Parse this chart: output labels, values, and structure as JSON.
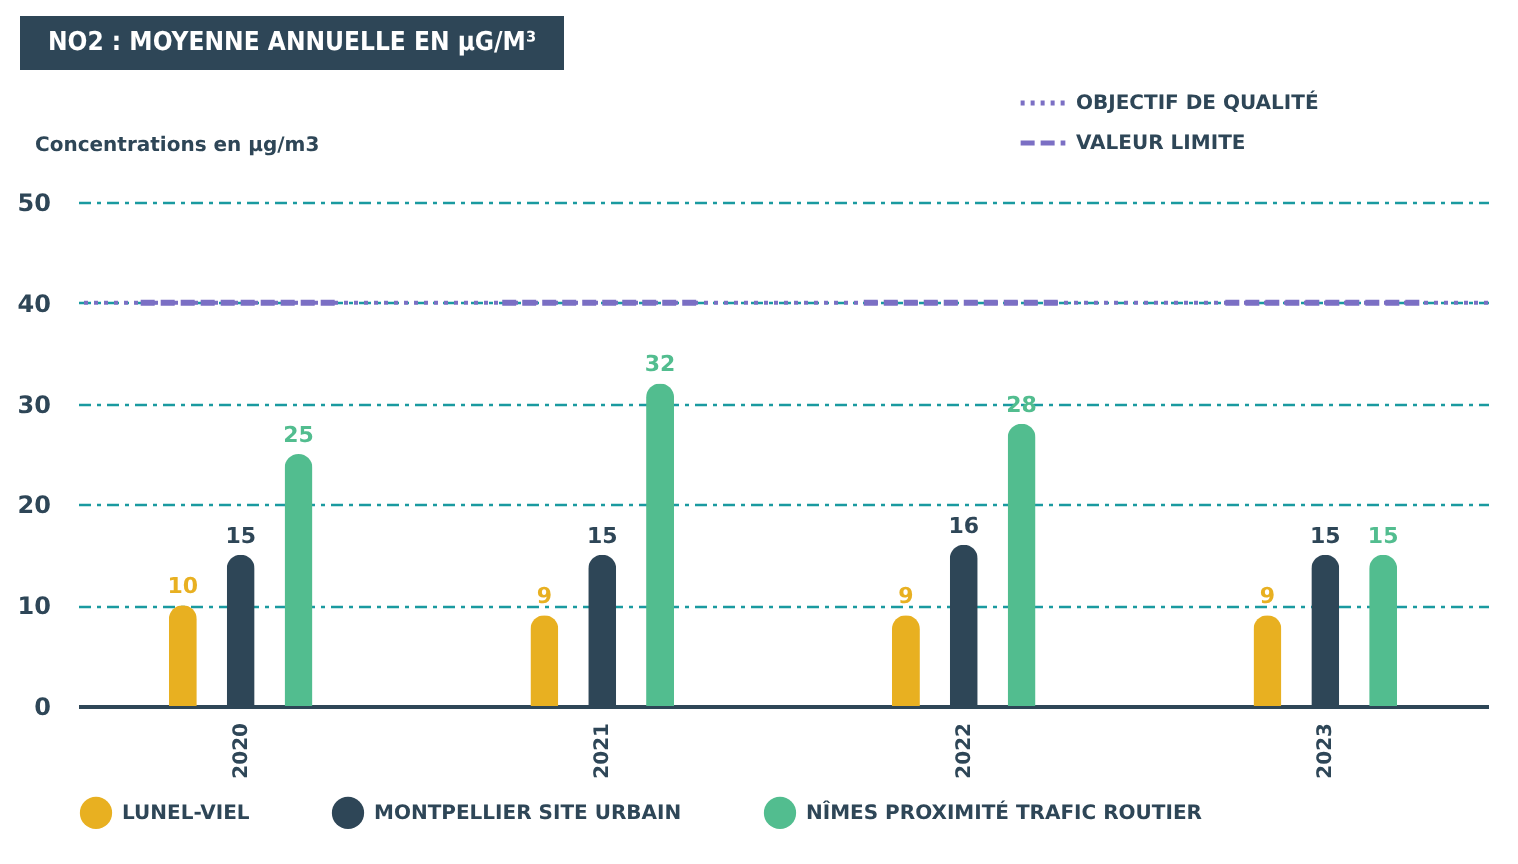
{
  "chart_data": {
    "type": "bar",
    "title": "NO2 : MOYENNE ANNUELLE EN µG/M³",
    "ylabel": "Concentrations en µg/m3",
    "categories": [
      "2020",
      "2021",
      "2022",
      "2023"
    ],
    "series": [
      {
        "name": "LUNEL-VIEL",
        "color": "#e8b021",
        "values": [
          10,
          9,
          9,
          9
        ]
      },
      {
        "name": "MONTPELLIER SITE URBAIN",
        "color": "#2e4657",
        "values": [
          15,
          15,
          16,
          15
        ]
      },
      {
        "name": "NÎMES PROXIMITÉ TRAFIC ROUTIER",
        "color": "#52bd8f",
        "values": [
          25,
          32,
          28,
          15
        ]
      }
    ],
    "ylim": [
      0,
      50
    ],
    "yticks": [
      0,
      10,
      20,
      30,
      40,
      50
    ],
    "grid": "y",
    "legend": "bottom",
    "data_labels": true,
    "ref_lines": [
      {
        "axis": "y",
        "value": 40,
        "label": "OBJECTIF DE QUALITÉ",
        "color": "#7b6fc4",
        "line_style": "dotted"
      },
      {
        "axis": "y",
        "value": 40,
        "label": "VALEUR LIMITE",
        "color": "#7b6fc4",
        "line_style": "dashed"
      }
    ]
  }
}
